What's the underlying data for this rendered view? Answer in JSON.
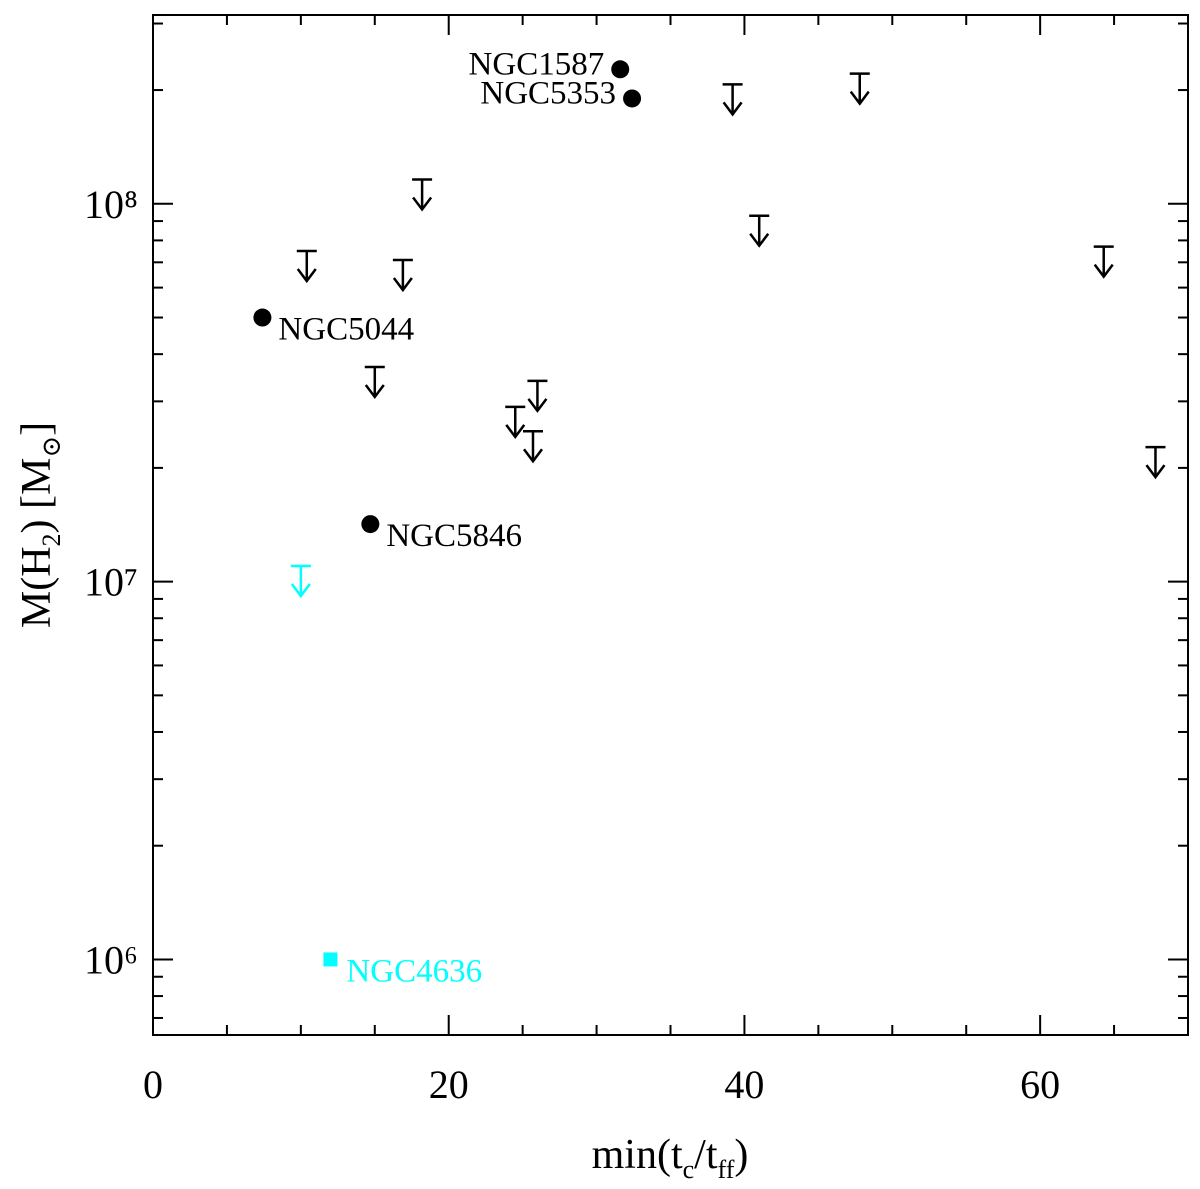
{
  "chart_data": {
    "type": "scatter",
    "xlabel": [
      {
        "text": "min(t"
      },
      {
        "text": "c",
        "sub": true
      },
      {
        "text": "/t"
      },
      {
        "text": "ff",
        "sub": true
      },
      {
        "text": ")"
      }
    ],
    "ylabel": [
      {
        "text": "M(H"
      },
      {
        "text": "2",
        "sub": true
      },
      {
        "text": ")  [M"
      },
      {
        "text": "⊙",
        "sub": true
      },
      {
        "text": "]"
      }
    ],
    "xlim": [
      0,
      70
    ],
    "xticks": [
      0,
      20,
      40,
      60
    ],
    "xminor_ticks": [
      5,
      10,
      15,
      25,
      30,
      35,
      45,
      50,
      55,
      65
    ],
    "ylim": [
      631000,
      316000000
    ],
    "log_y": true,
    "yticks": [
      {
        "value": 1000000,
        "label": "10⁶"
      },
      {
        "value": 10000000,
        "label": "10⁷"
      },
      {
        "value": 100000000,
        "label": "10⁸"
      }
    ],
    "yminor_ticks": [
      700000,
      800000,
      900000,
      2000000,
      3000000,
      4000000,
      5000000,
      6000000,
      7000000,
      8000000,
      9000000,
      20000000,
      30000000,
      40000000,
      50000000,
      60000000,
      70000000,
      80000000,
      90000000,
      200000000,
      300000000
    ],
    "series": [
      {
        "marker": "circle",
        "color": "#000000",
        "x": [
          31.6,
          32.4,
          7.4,
          14.7
        ],
        "values": [
          227000000,
          190000000,
          50000000,
          14200000
        ],
        "labels": [
          "NGC1587",
          "NGC5353",
          "NGC5044",
          "NGC5846"
        ]
      },
      {
        "marker": "upper-limit",
        "color": "#000000",
        "x": [
          10.4,
          16.9,
          18.2,
          15.0,
          24.5,
          26.0,
          25.7,
          39.2,
          47.8,
          41.0,
          64.3,
          67.8
        ],
        "values": [
          75000000,
          71000000,
          116000000,
          37000000,
          29000000,
          34000000,
          25000000,
          207000000,
          221000000,
          93000000,
          77000000,
          22700000
        ]
      },
      {
        "marker": "upper-limit",
        "color": "#00ffff",
        "x": [
          10.0
        ],
        "values": [
          11000000
        ]
      },
      {
        "marker": "square",
        "color": "#00ffff",
        "x": [
          12.0
        ],
        "values": [
          1000000
        ],
        "labels": [
          "NGC4636"
        ]
      }
    ]
  }
}
